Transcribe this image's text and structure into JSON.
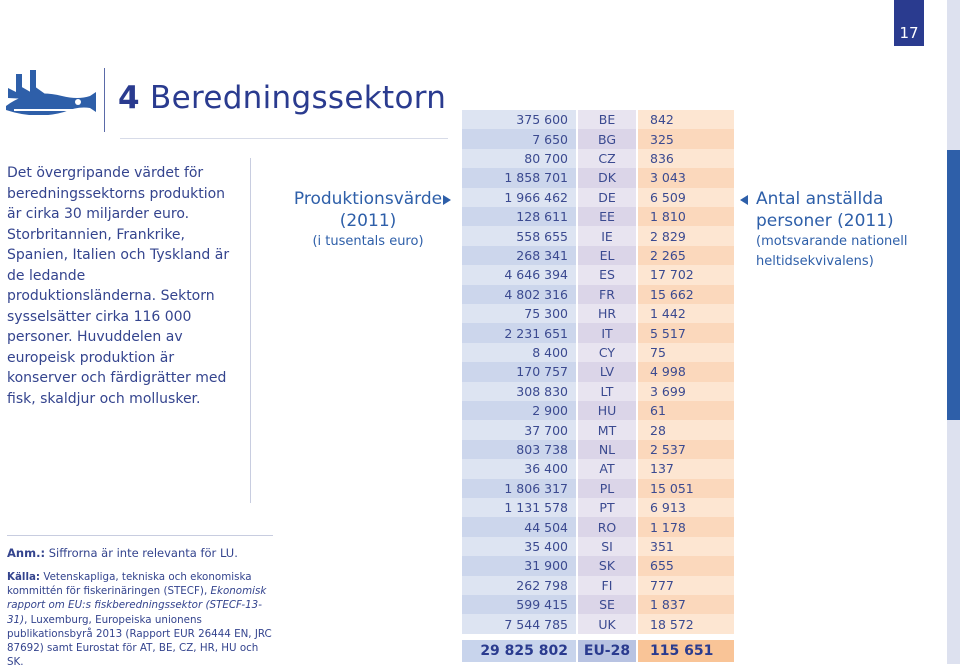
{
  "page": {
    "number": "17",
    "chapter_number": "4",
    "chapter_title": "Beredningssektorn"
  },
  "intro": {
    "text": "Det övergripande värdet för beredningssektorns produktion är cirka 30 miljarder euro. Storbritannien, Frankrike, Spanien, Italien och Tyskland är de ledande produktionsländerna. Sektorn sysselsätter cirka 116 000 personer. Huvuddelen av europeisk produktion är konserver och färdigrätter med fisk, skaldjur och mollusker."
  },
  "note": {
    "label": "Anm.:",
    "text": " Siffrorna är inte relevanta för LU."
  },
  "source": {
    "label": "Källa:",
    "text_before": " Vetenskapliga, tekniska och ekonomiska kommittén för fiskerinäringen (STECF), ",
    "italic": "Ekonomisk rapport om EU:s fiskberedningssektor (STECF-13-31)",
    "text_after": ", Luxemburg, Europeiska unionens publikationsbyrå 2013 (Rapport EUR 26444 EN, JRC 87692) samt Eurostat för AT, BE, CZ, HR, HU och SK."
  },
  "production_header": {
    "title_line1": "Produktionsvärde",
    "title_line2": "(2011)",
    "subtitle": "(i tusentals euro)"
  },
  "employment_header": {
    "title_line1": "Antal anställda",
    "title_line2": "personer (2011)",
    "subtitle_line1": "(motsvarande nationell",
    "subtitle_line2": "heltidsekvivalens)"
  },
  "table": {
    "rows": [
      {
        "value": "375 600",
        "country": "BE",
        "employees": "842"
      },
      {
        "value": "7 650",
        "country": "BG",
        "employees": "325"
      },
      {
        "value": "80 700",
        "country": "CZ",
        "employees": "836"
      },
      {
        "value": "1 858 701",
        "country": "DK",
        "employees": "3 043"
      },
      {
        "value": "1 966 462",
        "country": "DE",
        "employees": "6 509"
      },
      {
        "value": "128 611",
        "country": "EE",
        "employees": "1 810"
      },
      {
        "value": "558 655",
        "country": "IE",
        "employees": "2 829"
      },
      {
        "value": "268 341",
        "country": "EL",
        "employees": "2 265"
      },
      {
        "value": "4 646 394",
        "country": "ES",
        "employees": "17 702"
      },
      {
        "value": "4 802 316",
        "country": "FR",
        "employees": "15 662"
      },
      {
        "value": "75 300",
        "country": "HR",
        "employees": "1 442"
      },
      {
        "value": "2 231 651",
        "country": "IT",
        "employees": "5 517"
      },
      {
        "value": "8 400",
        "country": "CY",
        "employees": "75"
      },
      {
        "value": "170 757",
        "country": "LV",
        "employees": "4 998"
      },
      {
        "value": "308 830",
        "country": "LT",
        "employees": "3 699"
      },
      {
        "value": "2 900",
        "country": "HU",
        "employees": "61"
      },
      {
        "value": "37 700",
        "country": "MT",
        "employees": "28"
      },
      {
        "value": "803 738",
        "country": "NL",
        "employees": "2 537"
      },
      {
        "value": "36 400",
        "country": "AT",
        "employees": "137"
      },
      {
        "value": "1 806 317",
        "country": "PL",
        "employees": "15 051"
      },
      {
        "value": "1 131 578",
        "country": "PT",
        "employees": "6 913"
      },
      {
        "value": "44 504",
        "country": "RO",
        "employees": "1 178"
      },
      {
        "value": "35 400",
        "country": "SI",
        "employees": "351"
      },
      {
        "value": "31 900",
        "country": "SK",
        "employees": "655"
      },
      {
        "value": "262 798",
        "country": "FI",
        "employees": "777"
      },
      {
        "value": "599 415",
        "country": "SE",
        "employees": "1 837"
      },
      {
        "value": "7 544 785",
        "country": "UK",
        "employees": "18 572"
      }
    ],
    "total": {
      "value": "29 825 802",
      "country": "EU-28",
      "employees": "115 651"
    }
  },
  "icons": {
    "logo": "fish-factory-icon",
    "production_arrow": "arrow-right-icon",
    "employment_arrow": "arrow-left-icon"
  },
  "colors": {
    "primary": "#2a3b8f",
    "accent": "#2e5fa9",
    "production_column": "#dde4f2",
    "country_column": "#e8e4f0",
    "employment_column": "#fde6d2"
  }
}
